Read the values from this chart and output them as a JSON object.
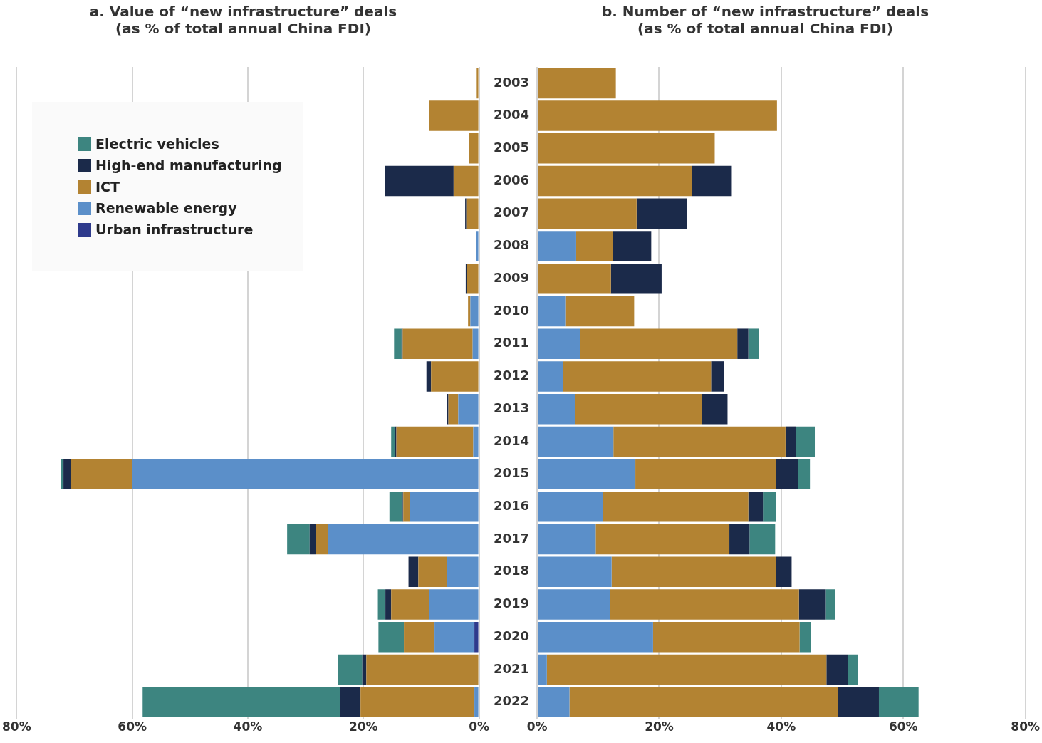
{
  "chart_data": [
    {
      "type": "bar",
      "orientation": "horizontal",
      "stacked": true,
      "title": "a. Value of “new infrastructure” deals\n(as % of total annual China FDI)",
      "categories": [
        "2003",
        "2004",
        "2005",
        "2006",
        "2007",
        "2008",
        "2009",
        "2010",
        "2011",
        "2012",
        "2013",
        "2014",
        "2015",
        "2016",
        "2017",
        "2018",
        "2019",
        "2020",
        "2021",
        "2022"
      ],
      "series": [
        {
          "name": "Urban infrastructure",
          "color": "#2e3a8c",
          "values": [
            null,
            null,
            null,
            null,
            null,
            null,
            null,
            null,
            null,
            null,
            null,
            null,
            null,
            null,
            null,
            null,
            null,
            0.8,
            null,
            null
          ]
        },
        {
          "name": "Renewable energy",
          "color": "#5b8fc9",
          "values": [
            null,
            null,
            null,
            null,
            null,
            0.5,
            null,
            1.5,
            1.1,
            null,
            3.6,
            1.0,
            60.0,
            11.9,
            26.1,
            5.5,
            8.6,
            6.9,
            null,
            0.8
          ]
        },
        {
          "name": "ICT",
          "color": "#b38332",
          "values": [
            0.4,
            8.6,
            1.7,
            4.4,
            2.2,
            null,
            2.1,
            0.4,
            12.1,
            8.3,
            1.7,
            13.3,
            10.6,
            1.2,
            2.1,
            5.0,
            6.6,
            5.3,
            19.5,
            19.7
          ]
        },
        {
          "name": "High-end manufacturing",
          "color": "#1b2a4a",
          "values": [
            null,
            null,
            null,
            11.9,
            0.2,
            null,
            0.2,
            null,
            0.2,
            0.8,
            0.2,
            0.2,
            1.3,
            0.1,
            1.1,
            1.7,
            1.0,
            null,
            0.7,
            3.5
          ]
        },
        {
          "name": "Electric vehicles",
          "color": "#3d8580",
          "values": [
            null,
            null,
            null,
            null,
            null,
            null,
            null,
            null,
            1.3,
            null,
            null,
            0.7,
            0.5,
            2.3,
            3.9,
            null,
            1.3,
            4.4,
            4.2,
            34.2
          ]
        }
      ],
      "xlim": [
        80,
        0
      ],
      "xticks": [
        {
          "value": 80,
          "label": "80%"
        },
        {
          "value": 60,
          "label": "60%"
        },
        {
          "value": 40,
          "label": "40%"
        },
        {
          "value": 20,
          "label": "20%"
        },
        {
          "value": 0,
          "label": "0%"
        }
      ],
      "grid": "x",
      "legend": "top left",
      "tick_labels": "x"
    },
    {
      "type": "bar",
      "orientation": "horizontal",
      "stacked": true,
      "title": "b. Number of “new infrastructure” deals\n(as % of total annual China FDI)",
      "categories": [
        "2003",
        "2004",
        "2005",
        "2006",
        "2007",
        "2008",
        "2009",
        "2010",
        "2011",
        "2012",
        "2013",
        "2014",
        "2015",
        "2016",
        "2017",
        "2018",
        "2019",
        "2020",
        "2021",
        "2022"
      ],
      "series": [
        {
          "color": "#5b8fc9",
          "values": [
            null,
            null,
            null,
            null,
            null,
            6.4,
            null,
            4.6,
            7.1,
            4.2,
            6.2,
            12.5,
            16.1,
            10.8,
            9.6,
            12.2,
            12.0,
            19.0,
            1.6,
            5.3
          ]
        },
        {
          "color": "#b38332",
          "values": [
            12.9,
            39.3,
            29.1,
            25.4,
            16.3,
            6.0,
            12.1,
            11.3,
            25.7,
            24.3,
            20.8,
            28.2,
            23.0,
            23.8,
            21.9,
            26.9,
            30.9,
            24.0,
            45.8,
            44.0
          ]
        },
        {
          "color": "#1b2a4a",
          "values": [
            null,
            null,
            null,
            6.5,
            8.2,
            6.3,
            8.3,
            null,
            1.8,
            2.1,
            4.2,
            1.7,
            3.7,
            2.4,
            3.3,
            2.6,
            4.4,
            null,
            3.5,
            6.7
          ]
        },
        {
          "color": "#3d8580",
          "values": [
            null,
            null,
            null,
            null,
            null,
            null,
            null,
            null,
            1.7,
            null,
            null,
            3.1,
            1.9,
            2.1,
            4.2,
            null,
            1.5,
            1.8,
            1.6,
            6.5
          ]
        }
      ],
      "xlim": [
        0,
        80
      ],
      "xticks": [
        {
          "value": 0,
          "label": "0%"
        },
        {
          "value": 20,
          "label": "20%"
        },
        {
          "value": 40,
          "label": "40%"
        },
        {
          "value": 60,
          "label": "60%"
        },
        {
          "value": 80,
          "label": "80%"
        }
      ],
      "grid": "x"
    }
  ]
}
